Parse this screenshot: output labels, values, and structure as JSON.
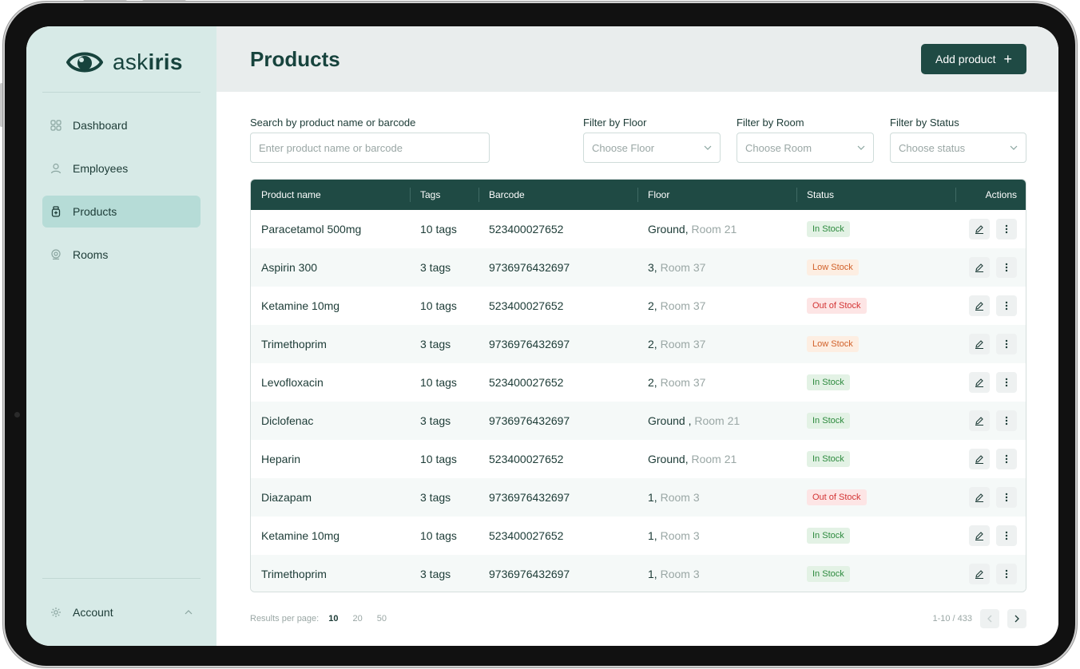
{
  "app": {
    "logo_text_light": "ask",
    "logo_text_bold": "iris"
  },
  "sidebar": {
    "items": [
      {
        "label": "Dashboard",
        "icon": "grid-icon"
      },
      {
        "label": "Employees",
        "icon": "user-icon"
      },
      {
        "label": "Products",
        "icon": "product-bottle-icon",
        "active": true
      },
      {
        "label": "Rooms",
        "icon": "location-icon"
      }
    ],
    "account_label": "Account"
  },
  "header": {
    "title": "Products",
    "add_button_label": "Add product",
    "add_button_icon": "+"
  },
  "filters": {
    "search": {
      "label": "Search by product name or barcode",
      "placeholder": "Enter product name or barcode"
    },
    "floor": {
      "label": "Filter by Floor",
      "value": "Choose Floor"
    },
    "room": {
      "label": "Filter by Room",
      "value": "Choose Room"
    },
    "status": {
      "label": "Filter by Status",
      "value": "Choose status"
    }
  },
  "table": {
    "columns": [
      "Product name",
      "Tags",
      "Barcode",
      "Floor",
      "Status",
      "Actions"
    ],
    "rows": [
      {
        "name": "Paracetamol 500mg",
        "tags": "10 tags",
        "barcode": "523400027652",
        "floor": "Ground,",
        "room": "Room 21",
        "status": "In Stock",
        "status_type": "in"
      },
      {
        "name": "Aspirin 300",
        "tags": "3 tags",
        "barcode": "9736976432697",
        "floor": "3,",
        "room": "Room 37",
        "status": "Low Stock",
        "status_type": "low"
      },
      {
        "name": "Ketamine 10mg",
        "tags": "10 tags",
        "barcode": "523400027652",
        "floor": "2,",
        "room": "Room 37",
        "status": "Out of Stock",
        "status_type": "out"
      },
      {
        "name": "Trimethoprim",
        "tags": "3 tags",
        "barcode": "9736976432697",
        "floor": "2,",
        "room": "Room 37",
        "status": "Low Stock",
        "status_type": "low"
      },
      {
        "name": "Levofloxacin",
        "tags": "10 tags",
        "barcode": "523400027652",
        "floor": "2,",
        "room": "Room 37",
        "status": "In Stock",
        "status_type": "in"
      },
      {
        "name": "Diclofenac",
        "tags": "3 tags",
        "barcode": "9736976432697",
        "floor": "Ground ,",
        "room": "Room 21",
        "status": "In Stock",
        "status_type": "in"
      },
      {
        "name": "Heparin",
        "tags": "10 tags",
        "barcode": "523400027652",
        "floor": "Ground,",
        "room": "Room 21",
        "status": "In Stock",
        "status_type": "in"
      },
      {
        "name": "Diazapam",
        "tags": "3 tags",
        "barcode": "9736976432697",
        "floor": "1,",
        "room": "Room 3",
        "status": "Out of Stock",
        "status_type": "out"
      },
      {
        "name": "Ketamine 10mg",
        "tags": "10 tags",
        "barcode": "523400027652",
        "floor": "1,",
        "room": "Room 3",
        "status": "In Stock",
        "status_type": "in"
      },
      {
        "name": "Trimethoprim",
        "tags": "3 tags",
        "barcode": "9736976432697",
        "floor": "1,",
        "room": "Room 3",
        "status": "In Stock",
        "status_type": "in"
      }
    ]
  },
  "footer": {
    "results_label": "Results per page:",
    "per_page_options": [
      "10",
      "20",
      "50"
    ],
    "selected_per_page": "10",
    "range_text": "1-10 / 433"
  },
  "colors": {
    "sidebar_bg": "#d7eae7",
    "primary": "#1f4a44",
    "in_stock": "#2d8a3e",
    "low_stock": "#d1612a",
    "out_of_stock": "#d33434"
  }
}
